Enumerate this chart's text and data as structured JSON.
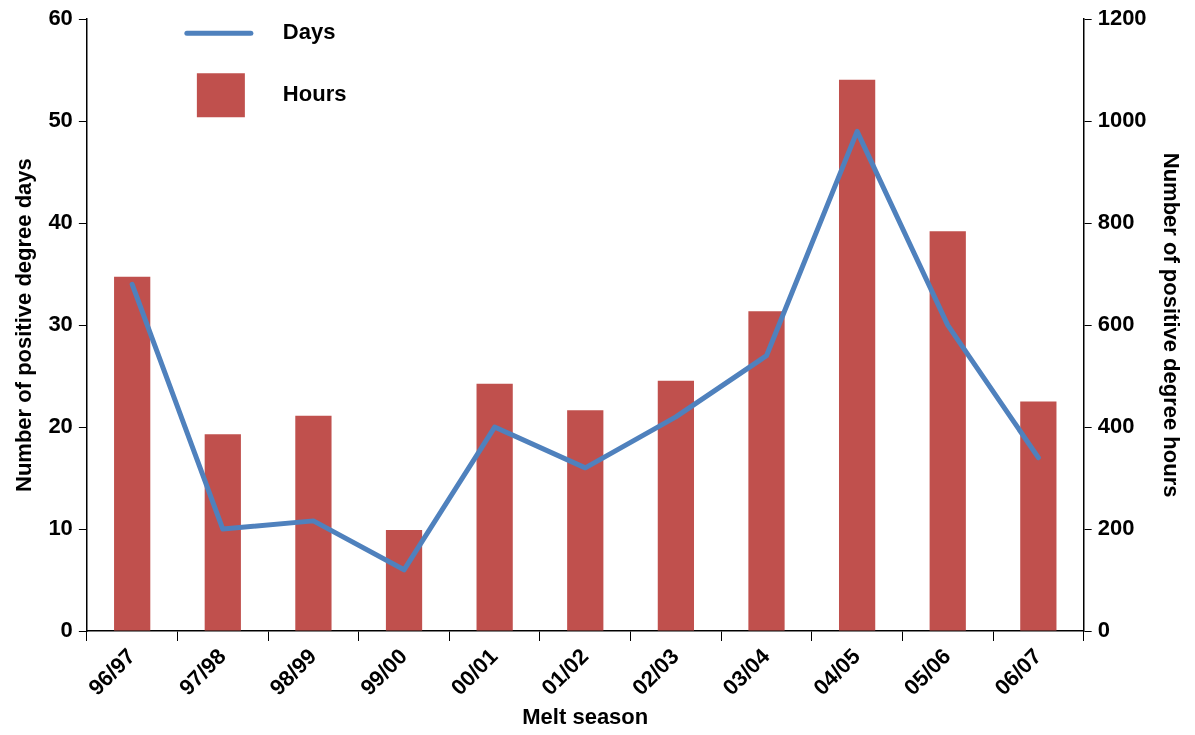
{
  "chart_data": {
    "type": "bar",
    "xlabel": "Melt season",
    "ylabel": "Number of positive degree days",
    "y2label": "Number of positive degree hours",
    "categories": [
      "96/97",
      "97/98",
      "98/99",
      "99/00",
      "00/01",
      "01/02",
      "02/03",
      "03/04",
      "04/05",
      "05/06",
      "06/07"
    ],
    "series": [
      {
        "name": "Days",
        "type": "line",
        "axis": "y",
        "color": "#4f81bd",
        "values": [
          34,
          10,
          10.8,
          6,
          20,
          16,
          21,
          27,
          49,
          30,
          17
        ]
      },
      {
        "name": "Hours",
        "axis": "y2",
        "color": "#c0504d",
        "values": [
          695,
          386,
          422,
          198,
          485,
          433,
          491,
          627,
          1081,
          784,
          450
        ]
      }
    ],
    "ylim": [
      0,
      60
    ],
    "yticks": [
      0,
      10,
      20,
      30,
      40,
      50,
      60
    ],
    "y2lim": [
      0,
      1200
    ],
    "y2ticks": [
      0,
      200,
      400,
      600,
      800,
      1000,
      1200
    ],
    "grid": false,
    "legend": "top left",
    "marker": "none",
    "line_style": "solid"
  }
}
